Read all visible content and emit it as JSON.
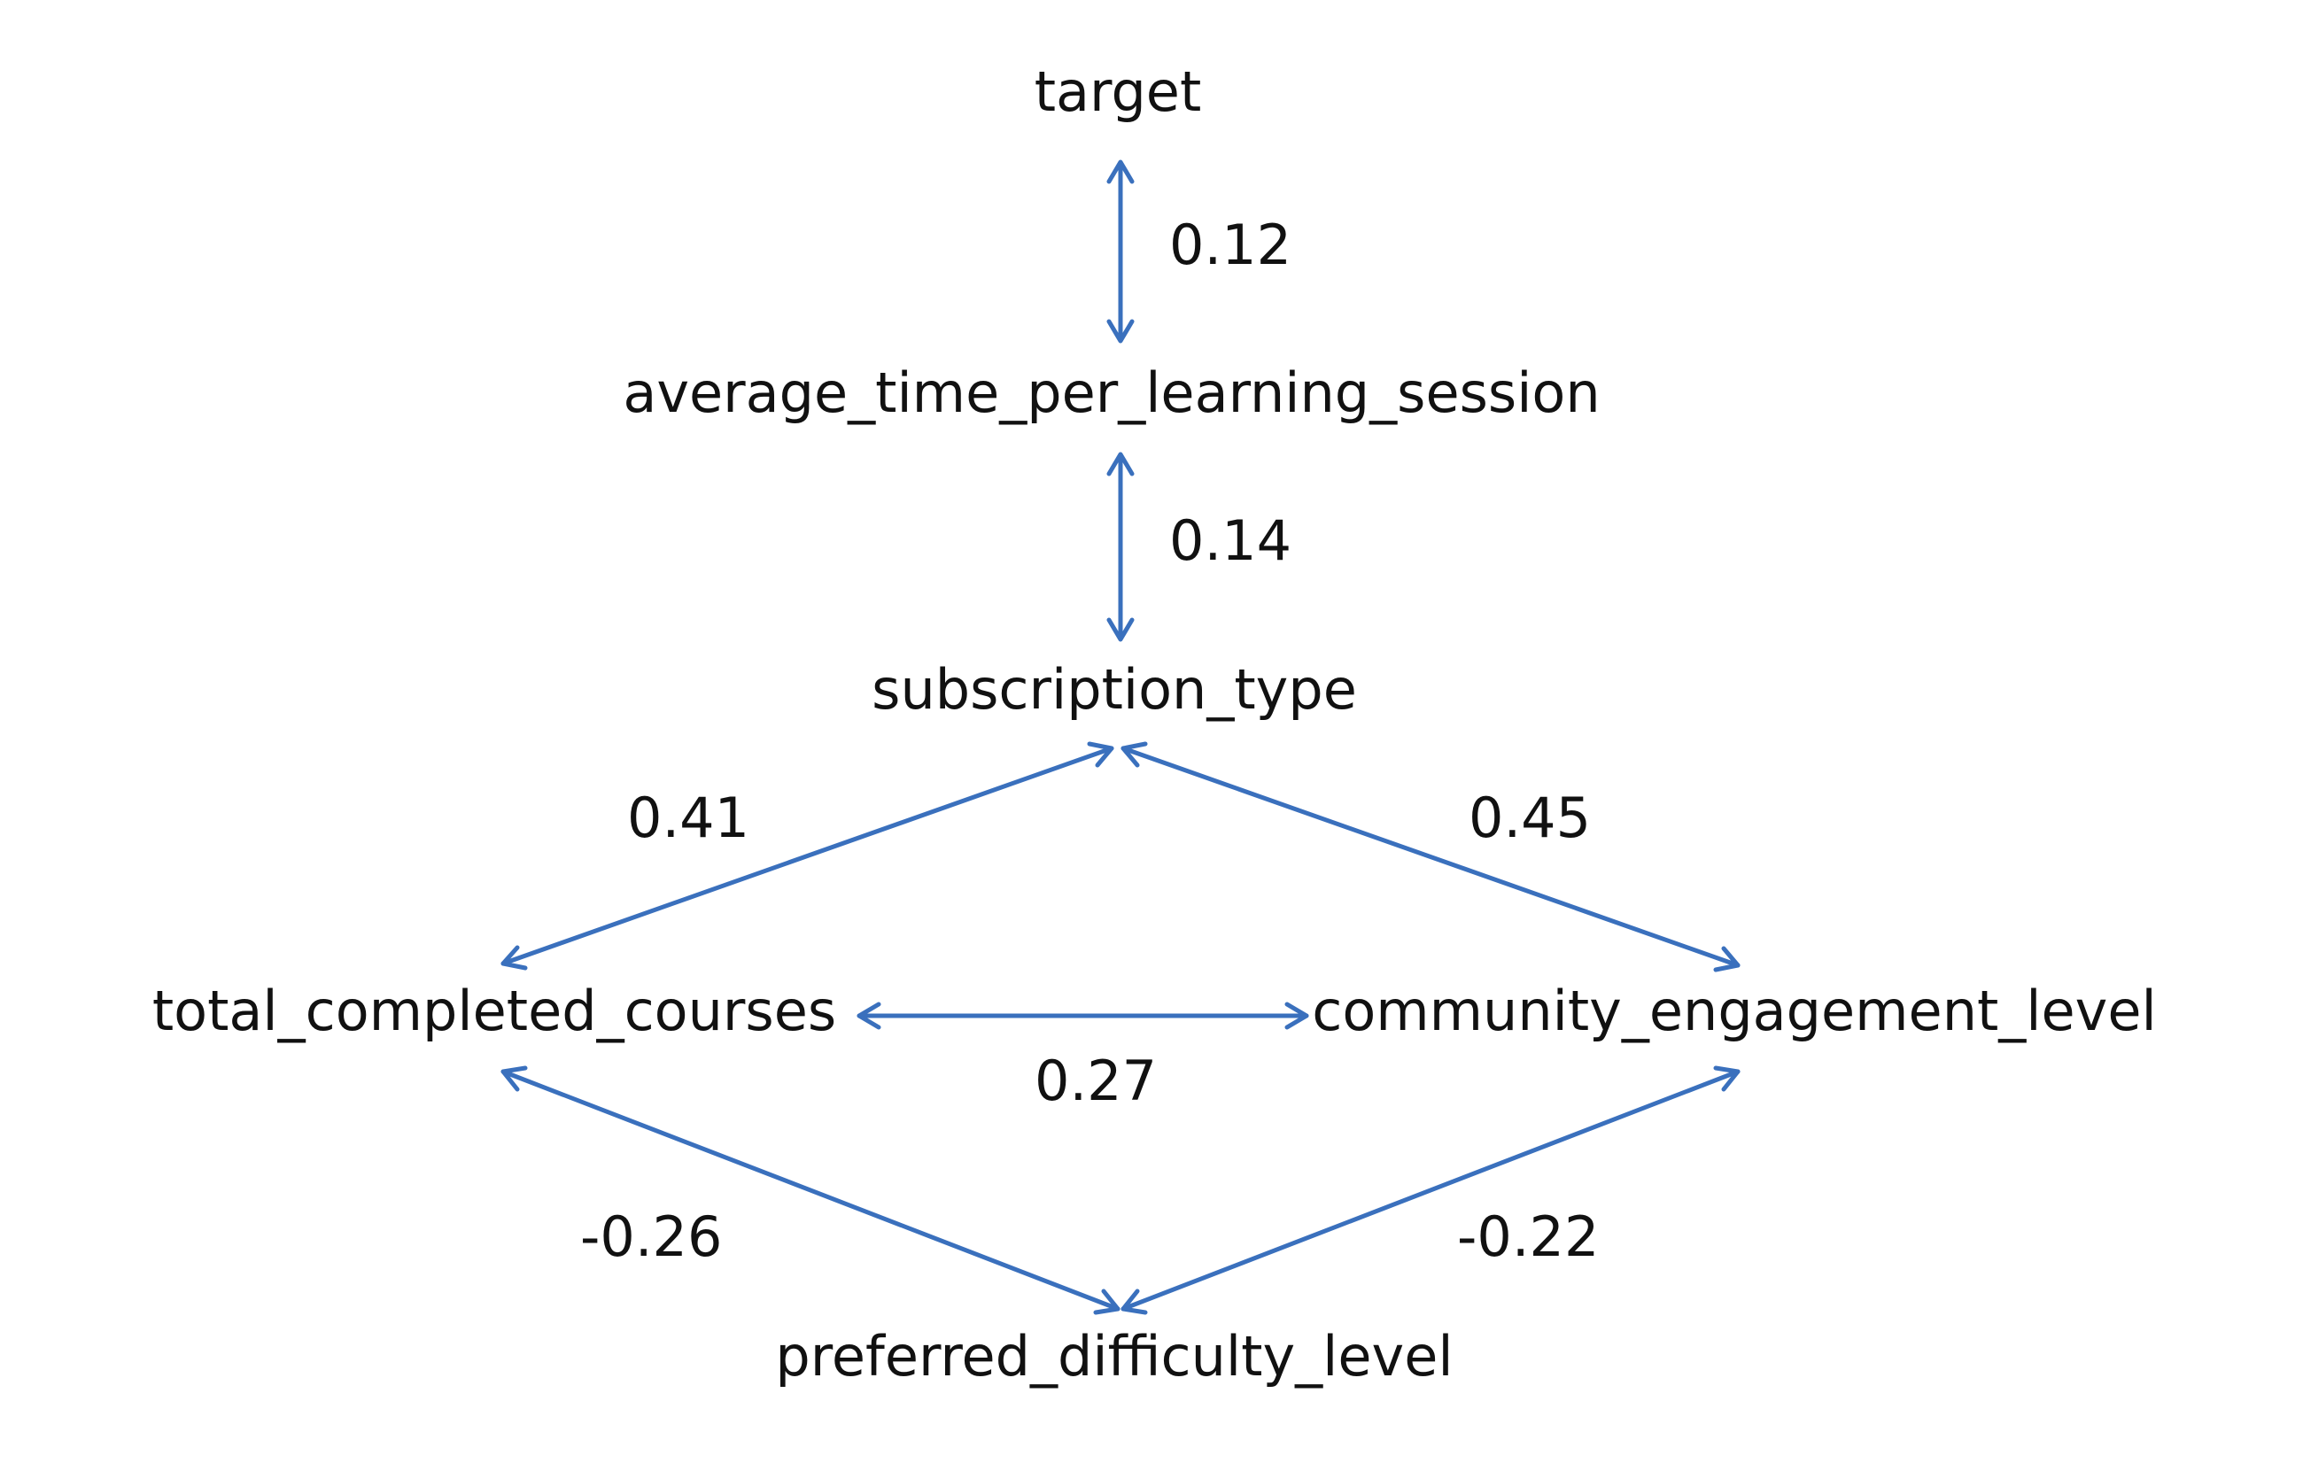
{
  "diagram": {
    "edge_color": "#3a70bd",
    "text_color": "#111111",
    "nodes": {
      "target": "target",
      "average_time": "average_time_per_learning_session",
      "subscription_type": "subscription_type",
      "total_completed": "total_completed_courses",
      "community_engagement": "community_engagement_level",
      "preferred_difficulty": "preferred_difficulty_level"
    },
    "edges": {
      "target_average_time": "0.12",
      "average_time_subscription": "0.14",
      "subscription_total_completed": "0.41",
      "subscription_community": "0.45",
      "total_completed_community": "0.27",
      "total_completed_preferred": "-0.26",
      "community_preferred": "-0.22"
    }
  }
}
